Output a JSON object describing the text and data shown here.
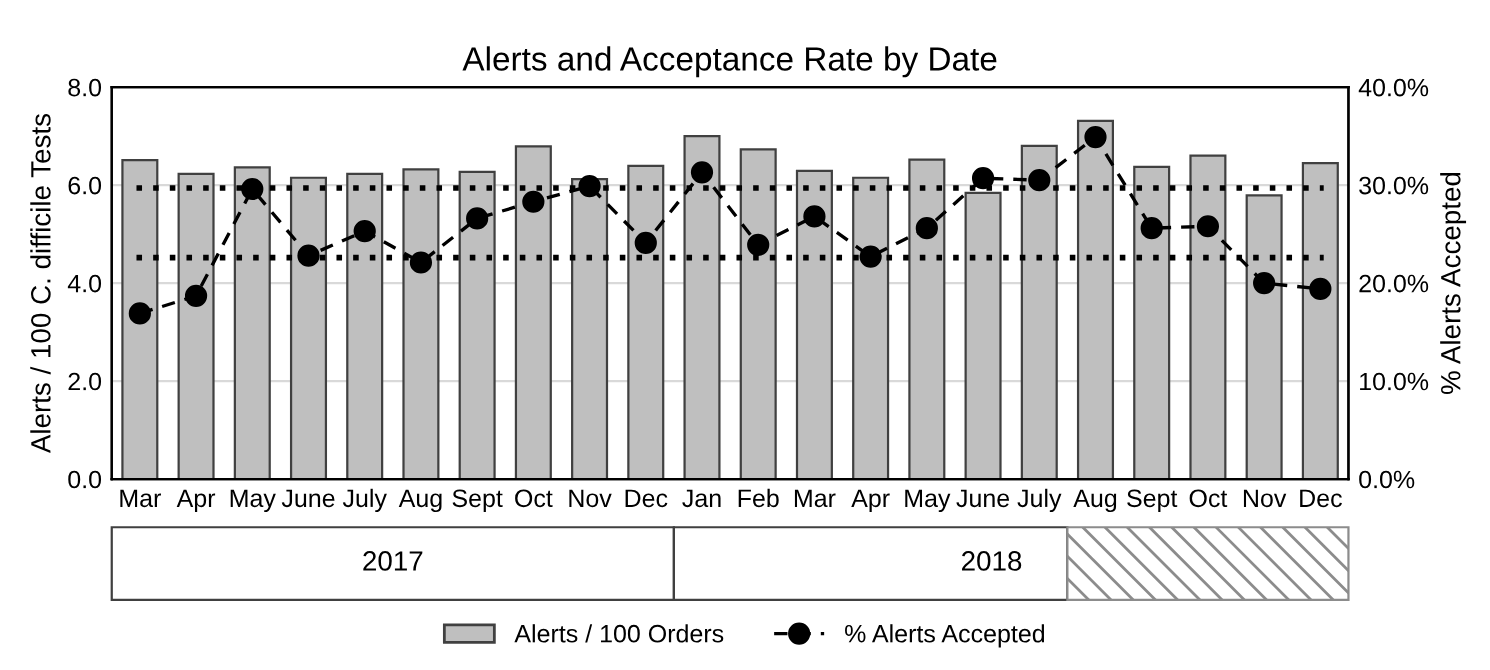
{
  "chart_data": {
    "type": "bar",
    "title": "Alerts and Acceptance Rate by Date",
    "categories": [
      "Mar",
      "Apr",
      "May",
      "June",
      "July",
      "Aug",
      "Sept",
      "Oct",
      "Nov",
      "Dec",
      "Jan",
      "Feb",
      "Mar",
      "Apr",
      "May",
      "June",
      "July",
      "Aug",
      "Sept",
      "Oct",
      "Nov",
      "Dec"
    ],
    "series": [
      {
        "name": "Alerts / 100 Orders",
        "color": "#bfbfbf",
        "values": [
          6.51,
          6.23,
          6.36,
          6.15,
          6.23,
          6.32,
          6.27,
          6.79,
          6.12,
          6.39,
          7.0,
          6.73,
          6.29,
          6.15,
          6.52,
          5.84,
          6.8,
          7.31,
          6.37,
          6.6,
          5.79,
          6.45
        ]
      },
      {
        "name": "% Alerts Accepted",
        "type": "line",
        "axis": "y2",
        "color": "#000000",
        "marker": "circle",
        "line_style": "dashed",
        "values": [
          16.9,
          18.7,
          29.6,
          22.8,
          25.3,
          22.1,
          26.6,
          28.3,
          29.9,
          24.1,
          31.3,
          23.9,
          26.8,
          22.7,
          25.6,
          30.7,
          30.5,
          34.9,
          25.6,
          25.8,
          20.0,
          19.4
        ]
      }
    ],
    "ylabel": "Alerts / 100 C. difficile Tests",
    "y2label": "% Alerts Accepted",
    "ylim": [
      0,
      8
    ],
    "yticks": [
      {
        "value": 0,
        "label": "0.0"
      },
      {
        "value": 2,
        "label": "2.0"
      },
      {
        "value": 4,
        "label": "4.0"
      },
      {
        "value": 6,
        "label": "6.0"
      },
      {
        "value": 8,
        "label": "8.0"
      }
    ],
    "y2lim": [
      0,
      40
    ],
    "y2ticks": [
      {
        "value": 0,
        "label": "0.0%"
      },
      {
        "value": 10,
        "label": "10.0%"
      },
      {
        "value": 20,
        "label": "20.0%"
      },
      {
        "value": 30,
        "label": "30.0%"
      },
      {
        "value": 40,
        "label": "40.0%"
      }
    ],
    "ref_lines": [
      {
        "axis": "y2",
        "value": 29.7,
        "label": null,
        "color": "#000000",
        "line_style": "dotted"
      },
      {
        "axis": "y2",
        "value": 22.6,
        "label": null,
        "color": "#000000",
        "line_style": "dotted"
      }
    ],
    "annotations": [
      "2017",
      "2018"
    ],
    "grid": "y",
    "legend": "bottom"
  }
}
